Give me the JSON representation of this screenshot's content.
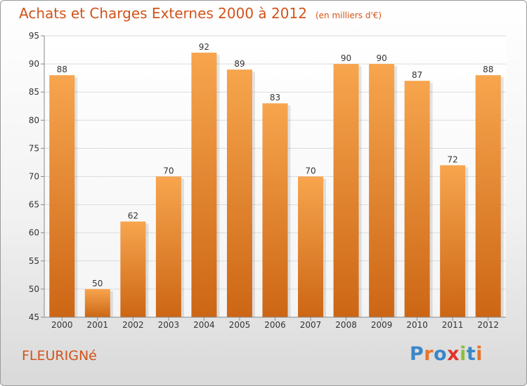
{
  "header": {
    "title": "Achats et Charges Externes 2000 à 2012",
    "subtitle": "(en milliers d'€)"
  },
  "footer": {
    "commune": "FLEURIGNé",
    "logo": "Proxiti",
    "logo_colors": [
      "#3a87c8",
      "#e8742a",
      "#3a87c8",
      "#e2312a",
      "#8bbf3d",
      "#3a87c8",
      "#e8742a"
    ]
  },
  "colors": {
    "title": "#d2531b",
    "bar_light": "#f7a54e",
    "bar_dark": "#cc6615",
    "grid": "#dcdcdc",
    "axis_text": "#333333"
  },
  "chart_data": {
    "type": "bar",
    "title": "Achats et Charges Externes 2000 à 2012",
    "subtitle": "(en milliers d'€)",
    "categories": [
      "2000",
      "2001",
      "2002",
      "2003",
      "2004",
      "2005",
      "2006",
      "2007",
      "2008",
      "2009",
      "2010",
      "2011",
      "2012"
    ],
    "values": [
      88,
      50,
      62,
      70,
      92,
      89,
      83,
      70,
      90,
      90,
      87,
      72,
      88
    ],
    "ylim": [
      45,
      95
    ],
    "yticks": [
      45,
      50,
      55,
      60,
      65,
      70,
      75,
      80,
      85,
      90,
      95
    ],
    "grid": true,
    "data_labels": true
  }
}
